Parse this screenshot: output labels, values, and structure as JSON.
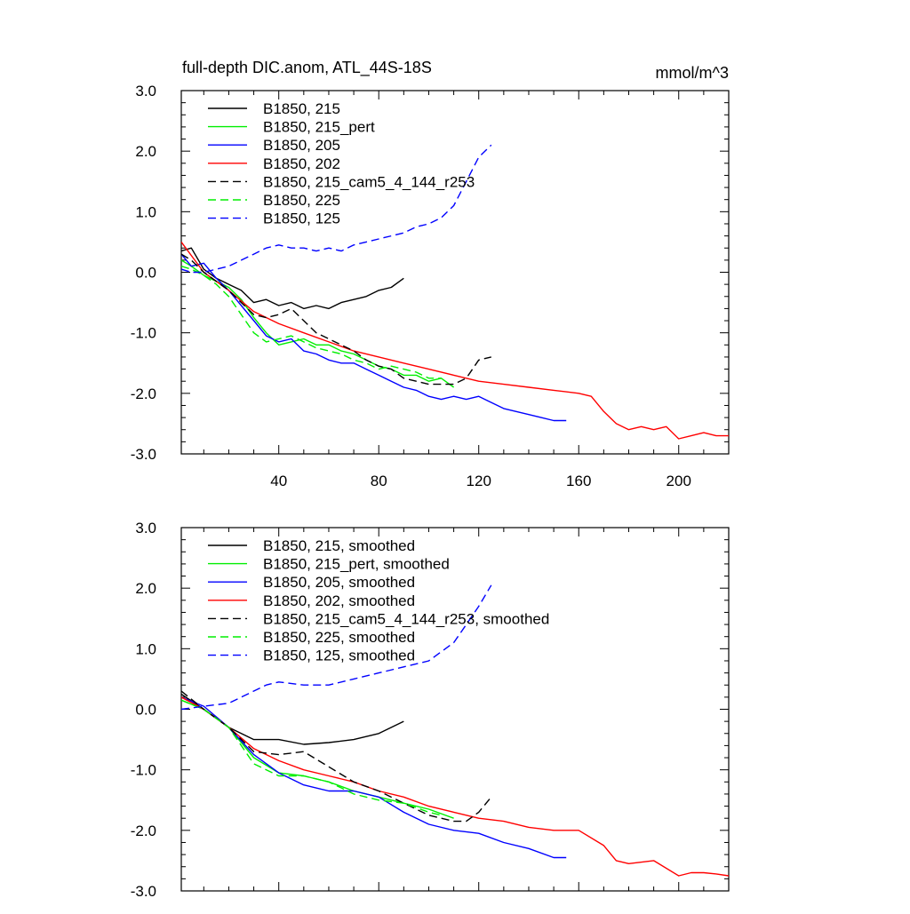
{
  "figure": {
    "title_left": "full-depth DIC.anom, ATL_44S-18S",
    "title_right": "mmol/m^3"
  },
  "chart_data": [
    {
      "type": "line",
      "title": "full-depth DIC.anom, ATL_44S-18S",
      "units": "mmol/m^3",
      "xlim": [
        1,
        220
      ],
      "ylim": [
        -3.0,
        3.0
      ],
      "x_ticks": [
        40,
        80,
        120,
        160,
        200
      ],
      "x_tick_labels": [
        "40",
        "80",
        "120",
        "160",
        "200"
      ],
      "y_ticks": [
        3.0,
        2.0,
        1.0,
        0.0,
        -1.0,
        -2.0,
        -3.0
      ],
      "y_tick_labels": [
        "3.0",
        "2.0",
        "1.0",
        "0.0",
        "-1.0",
        "-2.0",
        "-3.0"
      ],
      "legend_position": "top-left",
      "series": [
        {
          "name": "B1850, 215",
          "color": "#000000",
          "dash": "solid",
          "x": [
            1,
            5,
            10,
            15,
            20,
            25,
            30,
            35,
            40,
            45,
            50,
            55,
            60,
            65,
            70,
            75,
            80,
            85,
            90
          ],
          "y": [
            0.35,
            0.4,
            0.05,
            -0.1,
            -0.2,
            -0.3,
            -0.5,
            -0.45,
            -0.55,
            -0.5,
            -0.6,
            -0.55,
            -0.6,
            -0.5,
            -0.45,
            -0.4,
            -0.3,
            -0.25,
            -0.1
          ]
        },
        {
          "name": "B1850, 215_pert",
          "color": "#00ee00",
          "dash": "solid",
          "x": [
            1,
            5,
            10,
            15,
            20,
            25,
            30,
            35,
            40,
            45,
            50,
            55,
            60,
            65,
            70,
            75,
            80,
            85,
            90,
            95,
            100,
            105,
            110
          ],
          "y": [
            0.2,
            0.1,
            -0.05,
            -0.15,
            -0.25,
            -0.45,
            -0.75,
            -1.0,
            -1.2,
            -1.15,
            -1.1,
            -1.2,
            -1.2,
            -1.3,
            -1.35,
            -1.45,
            -1.55,
            -1.6,
            -1.7,
            -1.7,
            -1.8,
            -1.75,
            -1.9
          ]
        },
        {
          "name": "B1850, 205",
          "color": "#0000ff",
          "dash": "solid",
          "x": [
            1,
            5,
            10,
            15,
            20,
            25,
            30,
            35,
            40,
            45,
            50,
            55,
            60,
            65,
            70,
            75,
            80,
            85,
            90,
            95,
            100,
            105,
            110,
            115,
            120,
            125,
            130,
            135,
            140,
            145,
            150,
            155
          ],
          "y": [
            0.3,
            0.1,
            0.15,
            -0.1,
            -0.3,
            -0.55,
            -0.8,
            -1.05,
            -1.15,
            -1.1,
            -1.3,
            -1.35,
            -1.45,
            -1.5,
            -1.5,
            -1.6,
            -1.7,
            -1.8,
            -1.9,
            -1.95,
            -2.05,
            -2.1,
            -2.05,
            -2.1,
            -2.05,
            -2.15,
            -2.25,
            -2.3,
            -2.35,
            -2.4,
            -2.45,
            -2.45
          ]
        },
        {
          "name": "B1850, 202",
          "color": "#ff0000",
          "dash": "solid",
          "x": [
            1,
            10,
            20,
            30,
            40,
            50,
            60,
            70,
            80,
            90,
            100,
            110,
            120,
            130,
            140,
            150,
            160,
            165,
            170,
            175,
            180,
            185,
            190,
            195,
            200,
            205,
            210,
            215,
            220
          ],
          "y": [
            0.5,
            0.0,
            -0.3,
            -0.65,
            -0.85,
            -1.0,
            -1.15,
            -1.3,
            -1.4,
            -1.5,
            -1.6,
            -1.7,
            -1.8,
            -1.85,
            -1.9,
            -1.95,
            -2.0,
            -2.05,
            -2.3,
            -2.5,
            -2.6,
            -2.55,
            -2.6,
            -2.55,
            -2.75,
            -2.7,
            -2.65,
            -2.7,
            -2.7
          ]
        },
        {
          "name": "B1850, 215_cam5_4_144_r253",
          "color": "#000000",
          "dash": "dashed",
          "x": [
            1,
            5,
            10,
            15,
            20,
            25,
            30,
            35,
            40,
            45,
            50,
            55,
            60,
            65,
            70,
            75,
            80,
            85,
            90,
            95,
            100,
            105,
            110,
            115,
            120,
            125
          ],
          "y": [
            0.3,
            0.2,
            0.0,
            -0.15,
            -0.3,
            -0.5,
            -0.7,
            -0.75,
            -0.7,
            -0.6,
            -0.8,
            -1.0,
            -1.1,
            -1.2,
            -1.3,
            -1.45,
            -1.55,
            -1.6,
            -1.75,
            -1.8,
            -1.85,
            -1.85,
            -1.85,
            -1.75,
            -1.45,
            -1.4
          ]
        },
        {
          "name": "B1850, 225",
          "color": "#00ee00",
          "dash": "dashed",
          "x": [
            1,
            5,
            10,
            15,
            20,
            25,
            30,
            35,
            40,
            45,
            50,
            55,
            60,
            65,
            70,
            75,
            80,
            85,
            90,
            95,
            100,
            105
          ],
          "y": [
            0.1,
            0.05,
            -0.05,
            -0.2,
            -0.4,
            -0.7,
            -1.0,
            -1.15,
            -1.1,
            -1.05,
            -1.15,
            -1.25,
            -1.3,
            -1.35,
            -1.45,
            -1.5,
            -1.6,
            -1.55,
            -1.6,
            -1.65,
            -1.75,
            -1.75
          ]
        },
        {
          "name": "B1850, 125",
          "color": "#0000ff",
          "dash": "dashed",
          "x": [
            1,
            5,
            10,
            15,
            20,
            25,
            30,
            35,
            40,
            45,
            50,
            55,
            60,
            65,
            70,
            75,
            80,
            85,
            90,
            95,
            100,
            105,
            110,
            115,
            120,
            125
          ],
          "y": [
            0.05,
            0.0,
            0.0,
            0.05,
            0.1,
            0.2,
            0.3,
            0.4,
            0.45,
            0.4,
            0.4,
            0.35,
            0.4,
            0.35,
            0.45,
            0.5,
            0.55,
            0.6,
            0.65,
            0.75,
            0.8,
            0.9,
            1.1,
            1.5,
            1.9,
            2.1
          ]
        }
      ]
    },
    {
      "type": "line",
      "xlim": [
        1,
        220
      ],
      "ylim": [
        -3.0,
        3.0
      ],
      "x_ticks": [
        40,
        80,
        120,
        160,
        200
      ],
      "y_ticks": [
        3.0,
        2.0,
        1.0,
        0.0,
        -1.0,
        -2.0,
        -3.0
      ],
      "y_tick_labels": [
        "3.0",
        "2.0",
        "1.0",
        "0.0",
        "-1.0",
        "-2.0",
        "-3.0"
      ],
      "legend_position": "top-left",
      "series": [
        {
          "name": "B1850, 215, smoothed",
          "color": "#000000",
          "dash": "solid",
          "x": [
            1,
            10,
            20,
            30,
            40,
            50,
            60,
            70,
            80,
            90
          ],
          "y": [
            0.25,
            0.0,
            -0.3,
            -0.5,
            -0.5,
            -0.58,
            -0.55,
            -0.5,
            -0.4,
            -0.2
          ]
        },
        {
          "name": "B1850, 215_pert, smoothed",
          "color": "#00ee00",
          "dash": "solid",
          "x": [
            1,
            10,
            20,
            30,
            40,
            50,
            60,
            70,
            80,
            90,
            100,
            110
          ],
          "y": [
            0.15,
            0.0,
            -0.3,
            -0.8,
            -1.05,
            -1.1,
            -1.2,
            -1.35,
            -1.45,
            -1.55,
            -1.65,
            -1.8
          ]
        },
        {
          "name": "B1850, 205, smoothed",
          "color": "#0000ff",
          "dash": "solid",
          "x": [
            1,
            10,
            20,
            30,
            40,
            50,
            60,
            70,
            80,
            90,
            100,
            110,
            120,
            130,
            140,
            150,
            155
          ],
          "y": [
            0.2,
            0.05,
            -0.3,
            -0.75,
            -1.05,
            -1.25,
            -1.35,
            -1.35,
            -1.45,
            -1.7,
            -1.9,
            -2.0,
            -2.05,
            -2.2,
            -2.3,
            -2.45,
            -2.45
          ]
        },
        {
          "name": "B1850, 202, smoothed",
          "color": "#ff0000",
          "dash": "solid",
          "x": [
            1,
            10,
            20,
            30,
            40,
            50,
            60,
            70,
            80,
            90,
            100,
            110,
            120,
            130,
            140,
            150,
            160,
            170,
            175,
            180,
            190,
            200,
            205,
            210,
            215,
            220
          ],
          "y": [
            0.2,
            0.0,
            -0.3,
            -0.65,
            -0.85,
            -1.0,
            -1.1,
            -1.2,
            -1.35,
            -1.45,
            -1.6,
            -1.7,
            -1.8,
            -1.85,
            -1.95,
            -2.0,
            -2.0,
            -2.25,
            -2.5,
            -2.55,
            -2.5,
            -2.75,
            -2.7,
            -2.7,
            -2.72,
            -2.75
          ]
        },
        {
          "name": "B1850, 215_cam5_4_144_r253, smoothed",
          "color": "#000000",
          "dash": "dashed",
          "x": [
            1,
            10,
            20,
            30,
            40,
            50,
            60,
            70,
            80,
            90,
            100,
            110,
            115,
            120,
            125
          ],
          "y": [
            0.3,
            0.0,
            -0.3,
            -0.7,
            -0.75,
            -0.7,
            -0.95,
            -1.2,
            -1.35,
            -1.55,
            -1.75,
            -1.85,
            -1.85,
            -1.7,
            -1.45
          ]
        },
        {
          "name": "B1850, 225, smoothed",
          "color": "#00ee00",
          "dash": "dashed",
          "x": [
            1,
            10,
            20,
            30,
            40,
            50,
            60,
            70,
            80,
            90,
            100,
            105
          ],
          "y": [
            0.15,
            0.0,
            -0.3,
            -0.9,
            -1.1,
            -1.1,
            -1.2,
            -1.4,
            -1.5,
            -1.55,
            -1.7,
            -1.75
          ]
        },
        {
          "name": "B1850, 125, smoothed",
          "color": "#0000ff",
          "dash": "dashed",
          "x": [
            1,
            10,
            20,
            30,
            35,
            40,
            50,
            60,
            70,
            80,
            90,
            100,
            110,
            115,
            120,
            125
          ],
          "y": [
            0.0,
            0.05,
            0.1,
            0.3,
            0.4,
            0.45,
            0.4,
            0.4,
            0.5,
            0.6,
            0.7,
            0.8,
            1.1,
            1.4,
            1.7,
            2.05
          ]
        }
      ]
    }
  ]
}
